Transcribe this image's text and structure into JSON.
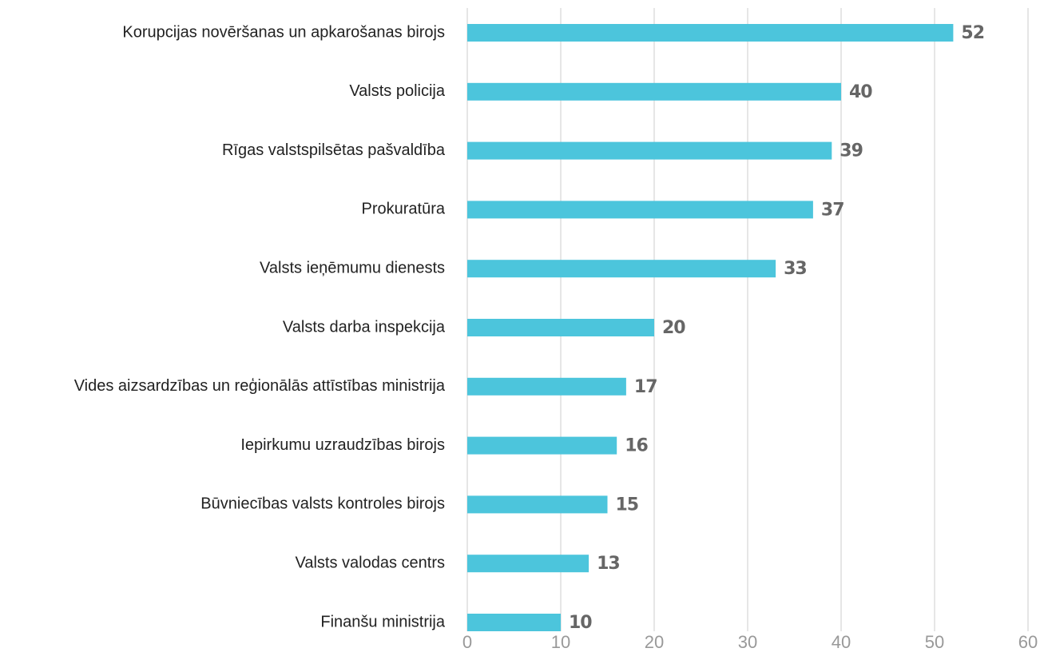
{
  "chart_data": {
    "type": "bar",
    "orientation": "horizontal",
    "categories": [
      "Korupcijas novēršanas un apkarošanas birojs",
      "Valsts policija",
      "Rīgas valstspilsētas pašvaldība",
      "Prokuratūra",
      "Valsts ieņēmumu dienests",
      "Valsts darba inspekcija",
      "Vides aizsardzības un reģionālās attīstības ministrija",
      "Iepirkumu uzraudzības birojs",
      "Būvniecības valsts kontroles birojs",
      "Valsts valodas centrs",
      "Finanšu ministrija"
    ],
    "values": [
      52,
      40,
      39,
      37,
      33,
      20,
      17,
      16,
      15,
      13,
      10
    ],
    "color": "#4cc5dc",
    "xlim": [
      0,
      60
    ],
    "xticks": [
      0,
      10,
      20,
      30,
      40,
      50,
      60
    ],
    "grid": true
  }
}
